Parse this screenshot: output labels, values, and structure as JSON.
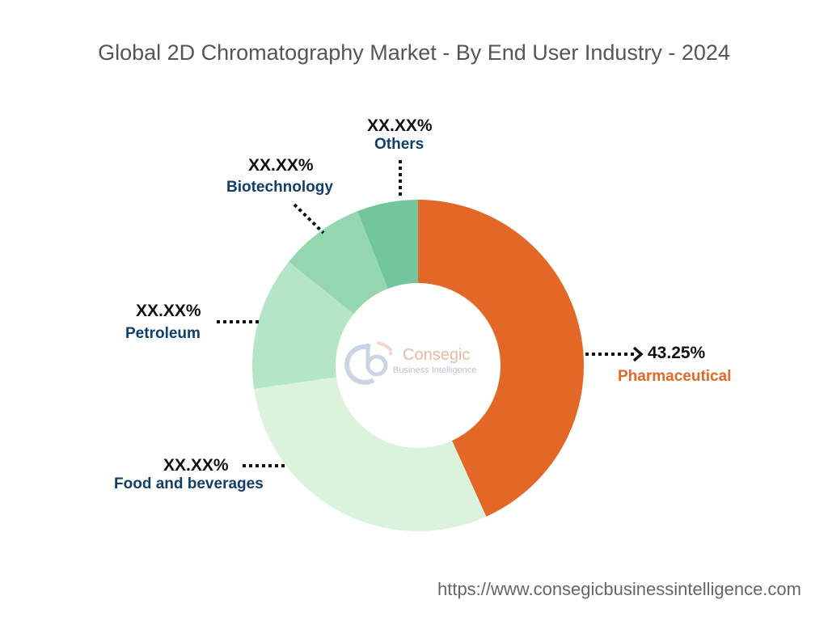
{
  "chart_data": {
    "type": "pie",
    "donut": true,
    "title": "Global 2D Chromatography Market - By End User Industry - 2024",
    "slices": [
      {
        "label": "Pharmaceutical",
        "value": 43.25,
        "display": "43.25%",
        "color": "#E36726",
        "label_color": "#E36726"
      },
      {
        "label": "Food and beverages",
        "value": 29.5,
        "display": "XX.XX%",
        "color": "#DBF2DC",
        "label_color": "#123E6B"
      },
      {
        "label": "Petroleum",
        "value": 13.0,
        "display": "XX.XX%",
        "color": "#B5E5C7",
        "label_color": "#123E6B"
      },
      {
        "label": "Biotechnology",
        "value": 8.3,
        "display": "XX.XX%",
        "color": "#93D6B0",
        "label_color": "#123E6B"
      },
      {
        "label": "Others",
        "value": 5.95,
        "display": "XX.XX%",
        "color": "#72C69B",
        "label_color": "#123E6B"
      }
    ],
    "start": "top",
    "direction": "clockwise",
    "legend": "none"
  },
  "logo": {
    "name": "Consegic",
    "tagline": "Business Intelligence"
  },
  "footer": {
    "url": "https://www.consegicbusinessintelligence.com"
  }
}
